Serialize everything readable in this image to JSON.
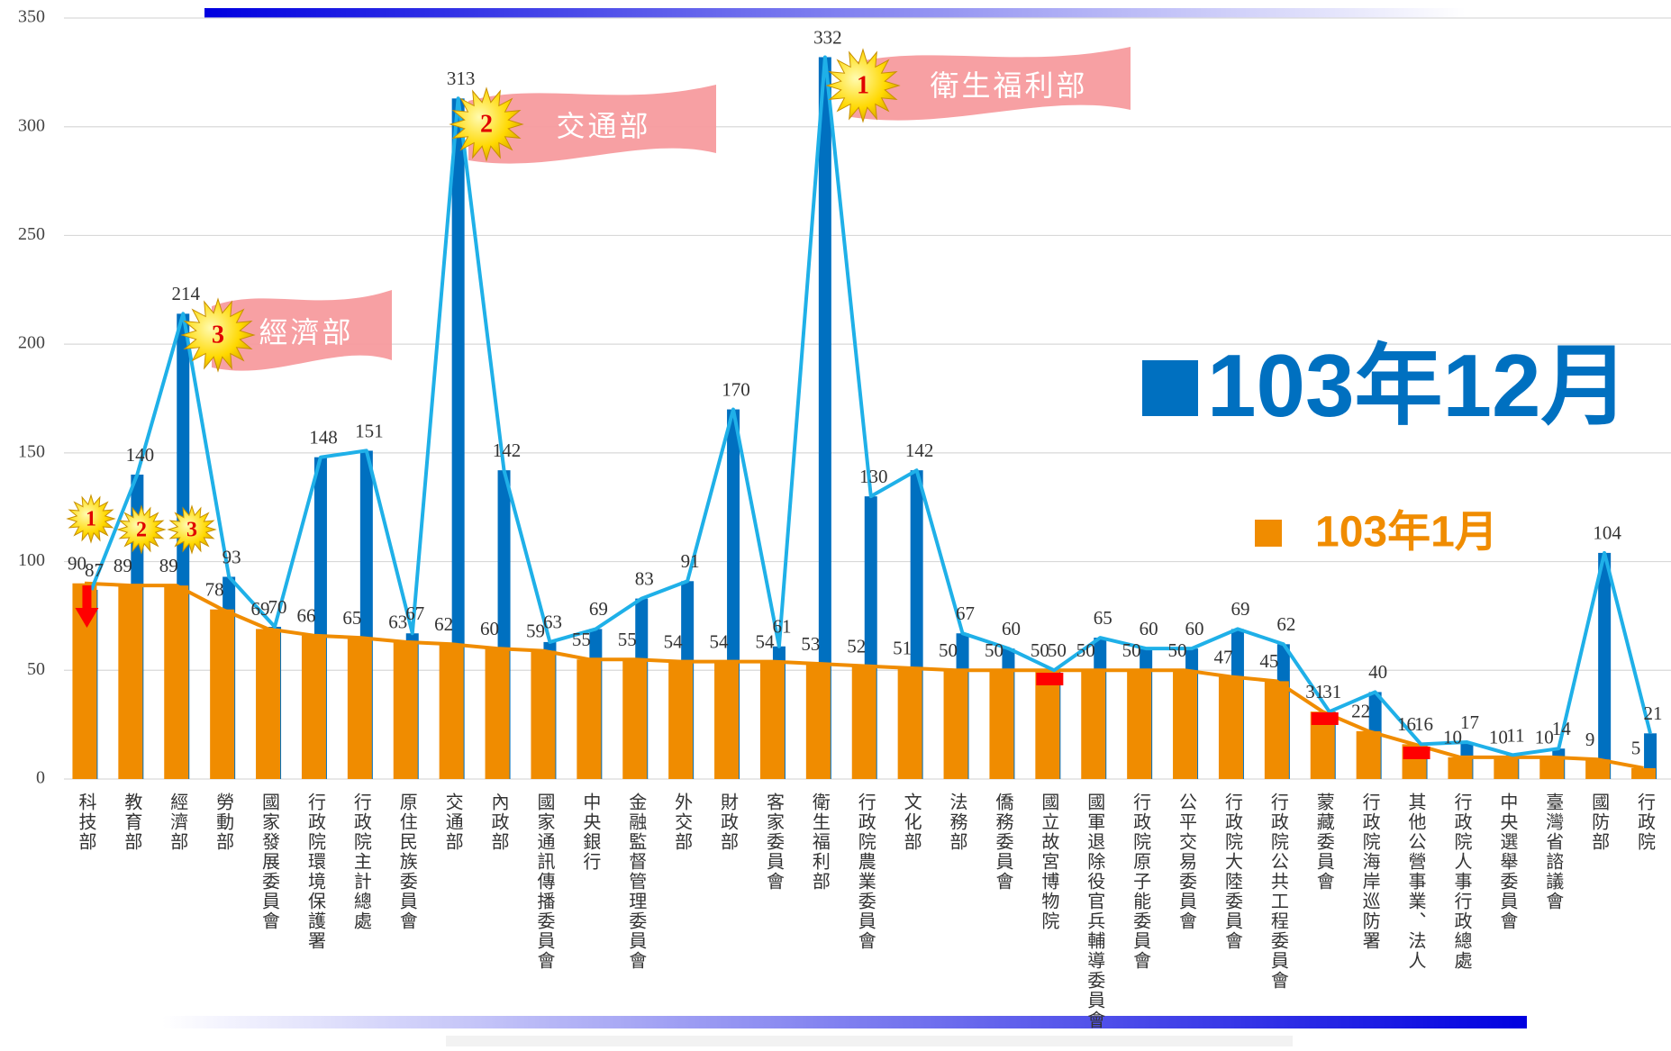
{
  "chart_data": {
    "type": "bar_line",
    "categories": [
      "科技部",
      "教育部",
      "經濟部",
      "勞動部",
      "國家發展委員會",
      "行政院環境保護署",
      "行政院主計總處",
      "原住民族委員會",
      "交通部",
      "內政部",
      "國家通訊傳播委員會",
      "中央銀行",
      "金融監督管理委員會",
      "外交部",
      "財政部",
      "客家委員會",
      "衛生福利部",
      "行政院農業委員會",
      "文化部",
      "法務部",
      "僑務委員會",
      "國立故宮博物院",
      "國軍退除役官兵輔導委員會",
      "行政院原子能委員會",
      "公平交易委員會",
      "行政院大陸委員會",
      "行政院公共工程委員會",
      "蒙藏委員會",
      "行政院海岸巡防署",
      "其他公營事業、法人",
      "行政院人事行政總處",
      "中央選舉委員會",
      "臺灣省諮議會",
      "國防部",
      "行政院"
    ],
    "series": [
      {
        "name": "103年12月",
        "color": "#0070c0",
        "line_color": "#1fb0e8",
        "values": [
          87,
          140,
          214,
          93,
          70,
          148,
          151,
          67,
          313,
          142,
          63,
          69,
          83,
          91,
          170,
          61,
          332,
          130,
          142,
          67,
          60,
          50,
          65,
          60,
          60,
          69,
          62,
          31,
          40,
          16,
          17,
          11,
          14,
          104,
          21
        ]
      },
      {
        "name": "103年1月",
        "color": "#f08c00",
        "line_color": "#f08c00",
        "values": [
          90,
          89,
          89,
          78,
          69,
          66,
          65,
          63,
          62,
          60,
          59,
          55,
          55,
          54,
          54,
          54,
          53,
          52,
          51,
          50,
          50,
          50,
          50,
          50,
          50,
          47,
          45,
          31,
          22,
          16,
          10,
          10,
          10,
          9,
          5
        ]
      }
    ],
    "ylim": [
      0,
      350
    ],
    "yticks": [
      0,
      50,
      100,
      150,
      200,
      250,
      300,
      350
    ],
    "grid": true,
    "annotations": [
      {
        "badge": "1",
        "text": "衛生福利部"
      },
      {
        "badge": "2",
        "text": "交通部"
      },
      {
        "badge": "3",
        "text": "經濟部"
      }
    ],
    "small_badges": [
      "1",
      "2",
      "3"
    ]
  }
}
